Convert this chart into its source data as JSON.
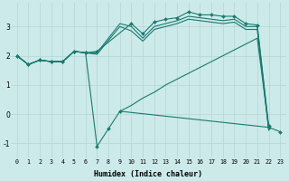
{
  "xlabel": "Humidex (Indice chaleur)",
  "bg_color": "#cceaea",
  "line_color": "#1a7a6e",
  "grid_color": "#b8d8d8",
  "xlim": [
    -0.5,
    23.5
  ],
  "ylim": [
    -1.5,
    3.8
  ],
  "yticks": [
    -1,
    0,
    1,
    2,
    3
  ],
  "xticks": [
    0,
    1,
    2,
    3,
    4,
    5,
    6,
    7,
    8,
    9,
    10,
    11,
    12,
    13,
    14,
    15,
    16,
    17,
    18,
    19,
    20,
    21,
    22,
    23
  ],
  "series": [
    {
      "x": [
        0,
        1,
        2,
        3,
        4,
        5,
        6,
        7,
        10,
        11,
        12,
        13,
        14,
        15,
        16,
        17,
        18,
        19,
        20,
        21,
        22
      ],
      "y": [
        2.0,
        1.7,
        1.85,
        1.8,
        1.8,
        2.15,
        2.1,
        2.15,
        3.1,
        2.75,
        3.15,
        3.25,
        3.3,
        3.5,
        3.4,
        3.4,
        3.35,
        3.35,
        3.1,
        3.05,
        -0.4
      ],
      "marker": true
    },
    {
      "x": [
        0,
        1,
        2,
        3,
        4,
        5,
        6,
        7,
        9,
        10,
        11,
        12,
        13,
        14,
        15,
        16,
        17,
        18,
        19,
        20,
        21,
        22
      ],
      "y": [
        2.0,
        1.7,
        1.85,
        1.8,
        1.8,
        2.15,
        2.1,
        2.1,
        3.1,
        3.0,
        2.6,
        3.0,
        3.1,
        3.2,
        3.35,
        3.3,
        3.25,
        3.2,
        3.25,
        3.0,
        3.0,
        -0.5
      ],
      "marker": false
    },
    {
      "x": [
        0,
        1,
        2,
        3,
        4,
        5,
        6,
        7,
        9,
        10,
        11,
        12,
        13,
        14,
        15,
        16,
        17,
        18,
        19,
        20,
        21,
        22
      ],
      "y": [
        2.0,
        1.7,
        1.85,
        1.8,
        1.8,
        2.15,
        2.1,
        2.05,
        3.0,
        2.85,
        2.5,
        2.9,
        3.0,
        3.1,
        3.25,
        3.2,
        3.15,
        3.1,
        3.15,
        2.9,
        2.9,
        -0.55
      ],
      "marker": false
    },
    {
      "x": [
        0,
        1,
        2,
        3,
        4,
        5,
        6,
        7,
        8,
        9,
        22,
        23
      ],
      "y": [
        2.0,
        1.7,
        1.85,
        1.8,
        1.8,
        2.15,
        2.1,
        -1.1,
        -0.5,
        0.1,
        -0.45,
        -0.6
      ],
      "marker": true
    },
    {
      "x": [
        9,
        10,
        11,
        12,
        13,
        14,
        15,
        16,
        17,
        18,
        19,
        20,
        21,
        22
      ],
      "y": [
        0.1,
        0.3,
        0.55,
        0.75,
        1.0,
        1.2,
        1.4,
        1.6,
        1.8,
        2.0,
        2.2,
        2.4,
        2.6,
        -0.45
      ],
      "marker": false
    }
  ]
}
